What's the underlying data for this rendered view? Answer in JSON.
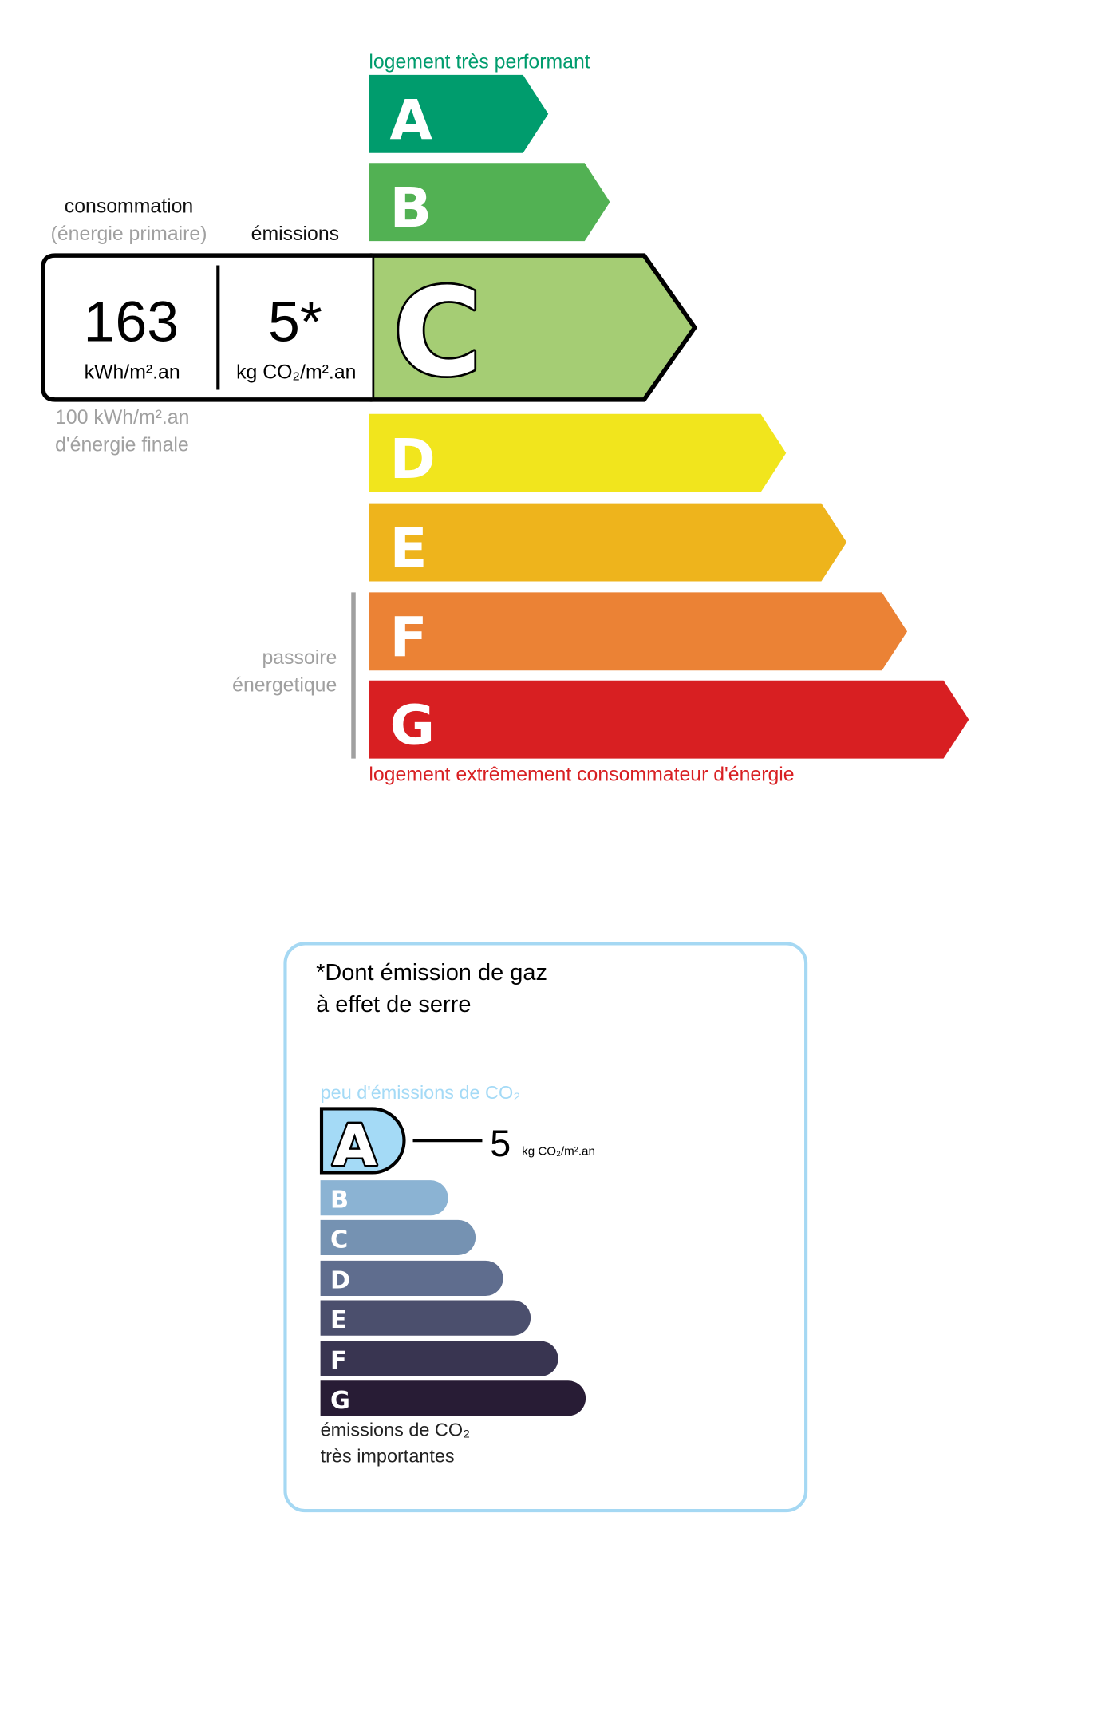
{
  "dpe": {
    "top_label": "logement très performant",
    "bottom_label": "logement extrêmement consommateur d'énergie",
    "top_label_color": "#009c6d",
    "bottom_label_color": "#d81f22",
    "active_class": "C",
    "classes": [
      {
        "letter": "A",
        "color": "#009c6d"
      },
      {
        "letter": "B",
        "color": "#52b153"
      },
      {
        "letter": "C",
        "color": "#a5cd74"
      },
      {
        "letter": "D",
        "color": "#f1e51d"
      },
      {
        "letter": "E",
        "color": "#eeb41c"
      },
      {
        "letter": "F",
        "color": "#eb8235"
      },
      {
        "letter": "G",
        "color": "#d81f22"
      }
    ],
    "consumption_header": "consommation",
    "consumption_subheader": "(énergie primaire)",
    "emissions_header": "émissions",
    "consumption_value": "163",
    "consumption_unit": "kWh/m².an",
    "emissions_value": "5*",
    "emissions_unit": "kg CO₂/m².an",
    "final_energy_line1": "100 kWh/m².an",
    "final_energy_line2": "d'énergie finale",
    "passoire_line1": "passoire",
    "passoire_line2": "énergetique"
  },
  "ges": {
    "title_line1": "*Dont émission de gaz",
    "title_line2": "à effet de serre",
    "top_label": "peu d'émissions de CO₂",
    "bottom_label_line1": "émissions de CO₂",
    "bottom_label_line2": "très importantes",
    "active_class": "A",
    "value": "5",
    "unit": "kg CO₂/m².an",
    "border_color": "#a5d8f3",
    "classes": [
      {
        "letter": "A",
        "color": "#a4daf6"
      },
      {
        "letter": "B",
        "color": "#8bb3d3"
      },
      {
        "letter": "C",
        "color": "#7592b2"
      },
      {
        "letter": "D",
        "color": "#5f6d8e"
      },
      {
        "letter": "E",
        "color": "#4b4f6d"
      },
      {
        "letter": "F",
        "color": "#393551"
      },
      {
        "letter": "G",
        "color": "#281c35"
      }
    ]
  }
}
